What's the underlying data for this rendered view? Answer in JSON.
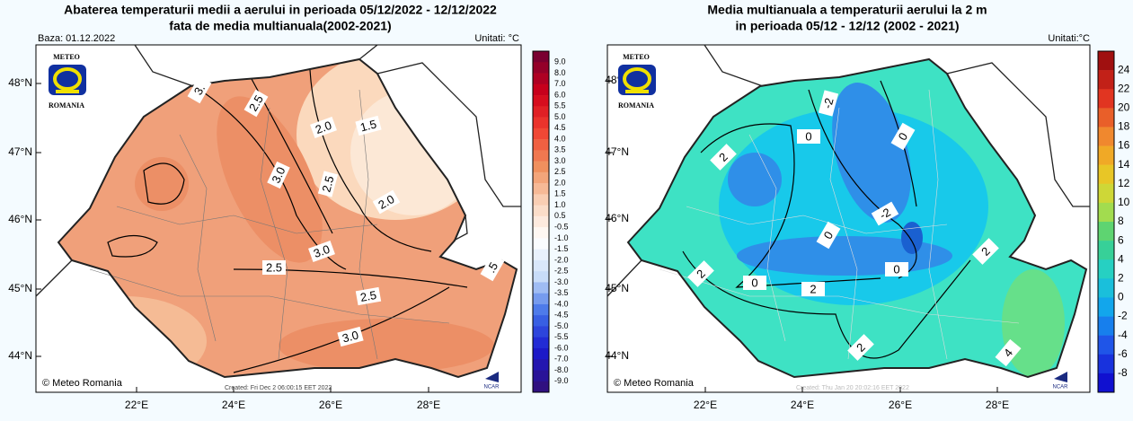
{
  "left": {
    "title": [
      "Abaterea temperaturii medii a aerului in perioada 05/12/2022 - 12/12/2022",
      "fata de media multianuala(2002-2021)"
    ],
    "base": "Baza: 01.12.2022",
    "units": "Unitati: °C",
    "colorbar": [
      "9.0",
      "8.0",
      "7.0",
      "6.0",
      "5.5",
      "5.0",
      "4.5",
      "4.0",
      "3.5",
      "3.0",
      "2.5",
      "2.0",
      "1.5",
      "1.0",
      "0.5",
      "-0.5",
      "-1.0",
      "-1.5",
      "-2.0",
      "-2.5",
      "-3.0",
      "-3.5",
      "-4.0",
      "-4.5",
      "-5.0",
      "-5.5",
      "-6.0",
      "-7.0",
      "-8.0",
      "-9.0"
    ],
    "lat": [
      "48°N",
      "47°N",
      "46°N",
      "45°N",
      "44°N"
    ],
    "lon": [
      "22°E",
      "24°E",
      "26°E",
      "28°E"
    ],
    "contours": [
      "3.",
      "2.5",
      "2.0",
      "1.5",
      "3.0",
      "2.5",
      "2.0",
      "3.0",
      "2.5",
      "2.5",
      "3.0",
      ".5"
    ],
    "logo": [
      "METEO",
      "ROMANIA"
    ],
    "credit": "© Meteo Romania",
    "created": "Created: Fri Dec  2 06:00:15 EET 2022",
    "ncar": "NCAR"
  },
  "right": {
    "title": [
      "Media multianuala a temperaturii aerului la 2 m",
      "in perioada 05/12 - 12/12 (2002 - 2021)"
    ],
    "units": "Unitati:°C",
    "colorbar": [
      "24",
      "22",
      "20",
      "18",
      "16",
      "14",
      "12",
      "10",
      "8",
      "6",
      "4",
      "2",
      "0",
      "-2",
      "-4",
      "-6",
      "-8"
    ],
    "lat": [
      "48°N",
      "47°N",
      "46°N",
      "45°N",
      "44°N"
    ],
    "lon": [
      "22°E",
      "24°E",
      "26°E",
      "28°E"
    ],
    "contours": [
      "-2",
      "0",
      "0",
      "2",
      "-2",
      "0",
      "2",
      "2",
      "0",
      "0",
      "2",
      "2",
      "4"
    ],
    "logo": [
      "METEO",
      "ROMANIA"
    ],
    "credit": "© Meteo Romania",
    "created": "Created: Thu Jan 20 20:02:16 EET 2022",
    "ncar": "NCAR"
  }
}
